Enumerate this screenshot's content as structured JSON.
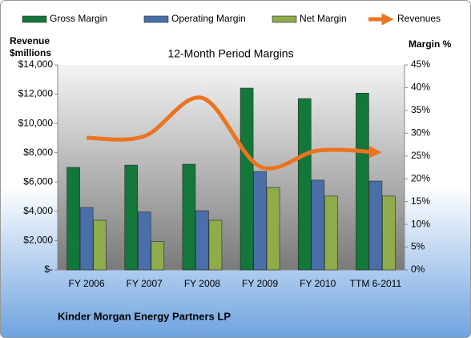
{
  "chart_data": {
    "type": "bar",
    "title": "12-Month Period Margins",
    "ylabel": "Revenue $millions",
    "y2label": "Margin %",
    "footer": "Kinder Morgan Energy Partners LP",
    "categories": [
      "FY 2006",
      "FY 2007",
      "FY 2008",
      "FY 2009",
      "FY 2010",
      "TTM 6-2011"
    ],
    "series": [
      {
        "name": "Gross Margin",
        "color": "#13773a",
        "axis": "y2",
        "values": [
          22.5,
          23,
          23.2,
          39.9,
          37.6,
          38.8
        ]
      },
      {
        "name": "Operating Margin",
        "color": "#4a6fa8",
        "axis": "y2",
        "values": [
          13.7,
          12.7,
          13,
          21.6,
          19.7,
          19.5
        ]
      },
      {
        "name": "Net Margin",
        "color": "#8fac4c",
        "axis": "y2",
        "values": [
          10.9,
          6.2,
          10.9,
          18.1,
          16.2,
          16.2
        ]
      },
      {
        "name": "Revenues",
        "color": "#ec7420",
        "type": "line",
        "values": [
          9020,
          9130,
          11740,
          7060,
          8150,
          8040
        ]
      }
    ],
    "ylim": [
      0,
      14000
    ],
    "yticks": [
      {
        "value": 0,
        "label": "$-"
      },
      {
        "value": 2000,
        "label": "$2,000"
      },
      {
        "value": 4000,
        "label": "$4,000"
      },
      {
        "value": 6000,
        "label": "$6,000"
      },
      {
        "value": 8000,
        "label": "$8,000"
      },
      {
        "value": 10000,
        "label": "$10,000"
      },
      {
        "value": 12000,
        "label": "$12,000"
      },
      {
        "value": 14000,
        "label": "$14,000"
      }
    ],
    "y2lim": [
      0,
      45
    ],
    "y2ticks": [
      {
        "value": 0,
        "label": "0%"
      },
      {
        "value": 5,
        "label": "5%"
      },
      {
        "value": 10,
        "label": "10%"
      },
      {
        "value": 15,
        "label": "15%"
      },
      {
        "value": 20,
        "label": "20%"
      },
      {
        "value": 25,
        "label": "25%"
      },
      {
        "value": 30,
        "label": "30%"
      },
      {
        "value": 35,
        "label": "35%"
      },
      {
        "value": 40,
        "label": "40%"
      },
      {
        "value": 45,
        "label": "45%"
      }
    ],
    "grid": false
  }
}
